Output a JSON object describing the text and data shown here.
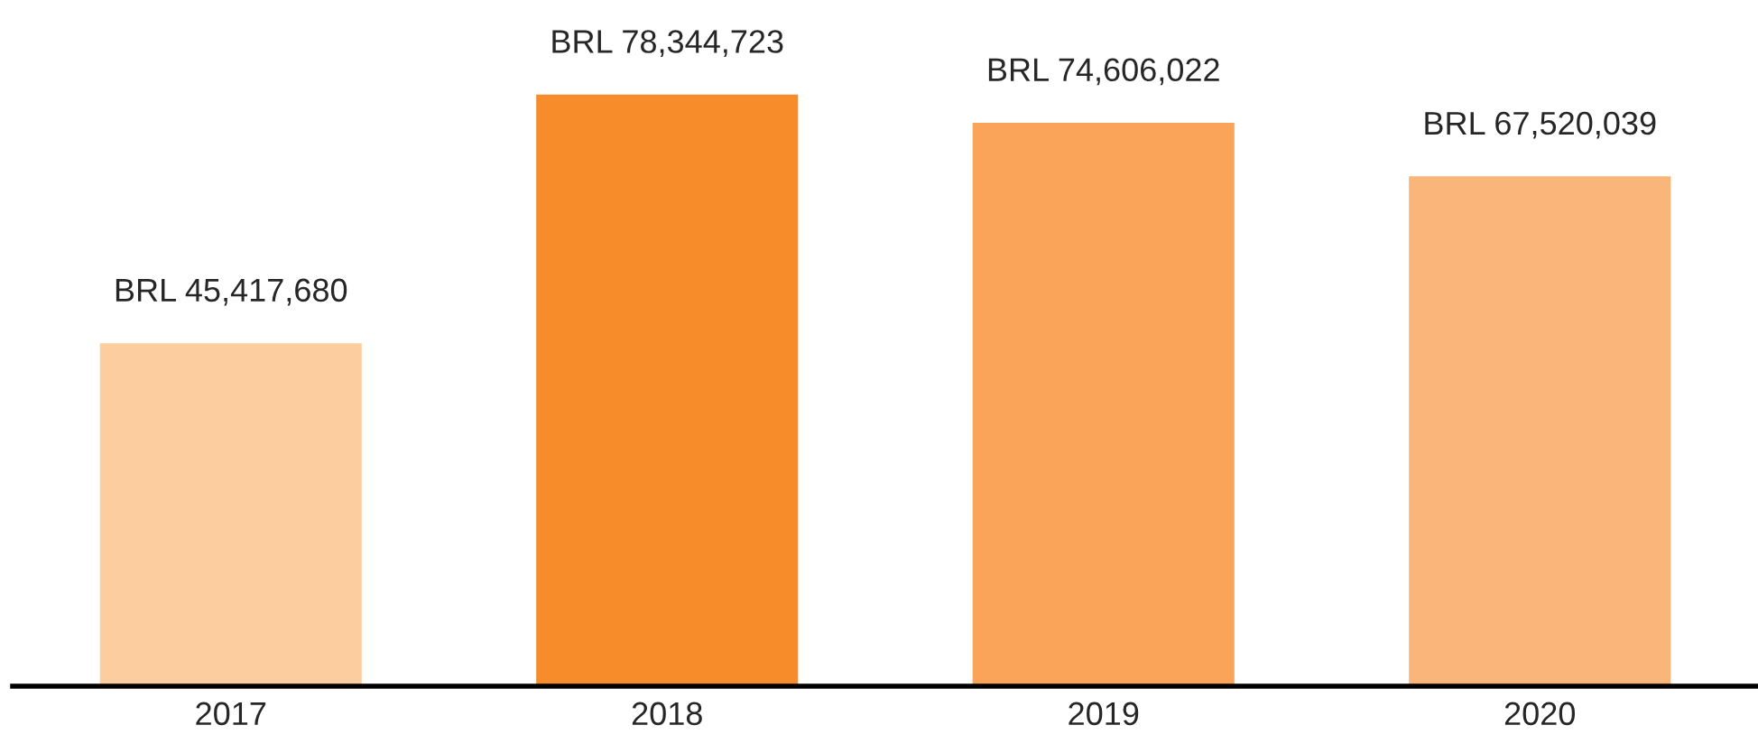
{
  "chart_data": {
    "type": "bar",
    "categories": [
      "2017",
      "2018",
      "2019",
      "2020"
    ],
    "values": [
      45417680,
      78344723,
      74606022,
      67520039
    ],
    "colors": [
      "#fccd9f",
      "#f68d2a",
      "#f9a458",
      "#fab67a"
    ],
    "value_labels": [
      "BRL 45,417,680",
      "BRL 78,344,723",
      "BRL 74,606,022",
      "BRL 67,520,039"
    ],
    "tick_labels": "x",
    "grid": false,
    "legend": false
  }
}
